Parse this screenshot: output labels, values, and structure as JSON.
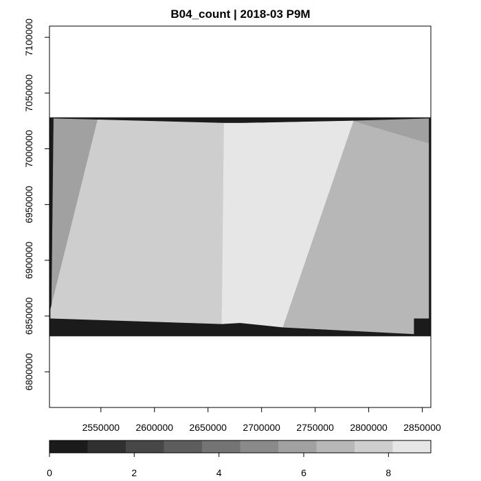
{
  "chart_data": {
    "type": "heatmap",
    "title": "B04_count | 2018-03 P9M",
    "xlabel": "",
    "ylabel": "",
    "xlim": [
      2502000,
      2858000
    ],
    "ylim": [
      6768000,
      7110000
    ],
    "x_ticks": [
      2550000,
      2600000,
      2650000,
      2700000,
      2750000,
      2800000,
      2850000
    ],
    "x_tick_labels": [
      "2550000",
      "2600000",
      "2650000",
      "2700000",
      "2750000",
      "2800000",
      "2850000"
    ],
    "y_ticks": [
      6800000,
      6850000,
      6900000,
      6950000,
      7000000,
      7050000,
      7100000
    ],
    "y_tick_labels": [
      "6800000",
      "6850000",
      "6900000",
      "6950000",
      "7000000",
      "7050000",
      "7100000"
    ],
    "legend": {
      "placement": "bottom",
      "range": [
        0,
        9
      ],
      "ticks": [
        0,
        2,
        4,
        6,
        8
      ],
      "tick_labels": [
        "0",
        "2",
        "4",
        "6",
        "8"
      ],
      "colors": [
        "#1b1b1b",
        "#303030",
        "#474747",
        "#5d5d5d",
        "#747474",
        "#8a8a8a",
        "#a1a1a1",
        "#b7b7b7",
        "#cecece",
        "#e6e6e6"
      ]
    },
    "regions": [
      {
        "name": "no-data-frame",
        "value": 0,
        "polygon": [
          [
            2502000,
            7028000
          ],
          [
            2858000,
            7028000
          ],
          [
            2858000,
            6832000
          ],
          [
            2502000,
            6832000
          ]
        ]
      },
      {
        "name": "left-strip-region",
        "value": 6,
        "polygon": [
          [
            2506000,
            7027000
          ],
          [
            2547000,
            7026000
          ],
          [
            2504000,
            6856000
          ]
        ]
      },
      {
        "name": "main-swath-region",
        "value": 7.8,
        "polygon": [
          [
            2547000,
            7026000
          ],
          [
            2665000,
            7023000
          ],
          [
            2663000,
            6843000
          ],
          [
            2503000,
            6848000
          ],
          [
            2503000,
            6856000
          ]
        ]
      },
      {
        "name": "overlap-strip-region",
        "value": 9,
        "polygon": [
          [
            2665000,
            7023000
          ],
          [
            2682000,
            7023000
          ],
          [
            2680000,
            6844000
          ],
          [
            2663000,
            6843000
          ]
        ]
      },
      {
        "name": "central-swath-region",
        "value": 8.2,
        "polygon": [
          [
            2682000,
            7023000
          ],
          [
            2786000,
            7025000
          ],
          [
            2720000,
            6840000
          ],
          [
            2680000,
            6844000
          ]
        ]
      },
      {
        "name": "right-swath-region",
        "value": 7,
        "polygon": [
          [
            2786000,
            7025000
          ],
          [
            2856000,
            7005000
          ],
          [
            2856000,
            6848000
          ],
          [
            2842000,
            6848000
          ],
          [
            2842000,
            6834000
          ],
          [
            2720000,
            6840000
          ]
        ]
      },
      {
        "name": "top-right-corner-region",
        "value": 6,
        "polygon": [
          [
            2786000,
            7025000
          ],
          [
            2856000,
            7027000
          ],
          [
            2856000,
            7005000
          ]
        ]
      }
    ]
  }
}
